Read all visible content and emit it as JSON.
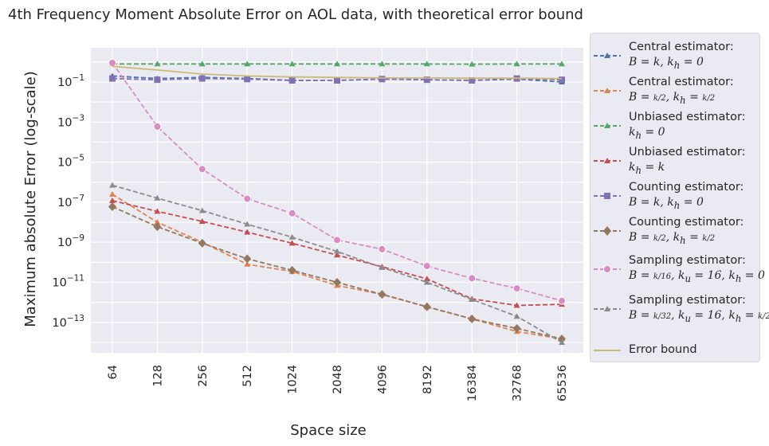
{
  "chart_data": {
    "type": "line",
    "title": "4th Frequency Moment Absolute Error on AOL data, with theoretical error bound",
    "xlabel": "Space size",
    "ylabel": "Maximum absolute Error (log-scale)",
    "y_scale": "log",
    "ylim": [
      3e-15,
      3
    ],
    "grid": true,
    "legend_position": "right-outside",
    "x": [
      "64",
      "128",
      "256",
      "512",
      "1024",
      "2048",
      "4096",
      "8192",
      "16384",
      "32768",
      "65536"
    ],
    "y_tick_labels": [
      "10^-13",
      "10^-11",
      "10^-9",
      "10^-7",
      "10^-5",
      "10^-3",
      "10^-1"
    ],
    "series": [
      {
        "name": "Central estimator:",
        "math": "B = k, k_h = 0",
        "color": "#4c72b0",
        "marker": "triangle",
        "dashed": true,
        "values": [
          0.2,
          0.15,
          0.17,
          0.15,
          0.12,
          0.12,
          0.14,
          0.13,
          0.12,
          0.14,
          0.1
        ]
      },
      {
        "name": "Central estimator:",
        "math": "B = k/2, k_h = k/2",
        "color": "#dd8452",
        "marker": "triangle",
        "dashed": true,
        "values": [
          2.5e-07,
          1e-08,
          1e-09,
          8e-11,
          3.5e-11,
          7e-12,
          2.5e-12,
          6e-13,
          1.5e-13,
          3.5e-14,
          1.5e-14
        ]
      },
      {
        "name": "Unbiased estimator:",
        "math": "k_h = 0",
        "color": "#55a868",
        "marker": "triangle",
        "dashed": true,
        "values": [
          0.8,
          0.8,
          0.8,
          0.8,
          0.8,
          0.8,
          0.8,
          0.8,
          0.78,
          0.8,
          0.8
        ]
      },
      {
        "name": "Unbiased estimator:",
        "math": "k_h = k",
        "color": "#c44e52",
        "marker": "triangle",
        "dashed": true,
        "values": [
          1.2e-07,
          3.5e-08,
          1.1e-08,
          3.2e-09,
          9e-10,
          2.3e-10,
          6e-11,
          1.5e-11,
          1.5e-12,
          7e-13,
          8e-13
        ]
      },
      {
        "name": "Counting estimator:",
        "math": "B = k, k_h = 0",
        "color": "#8172b3",
        "marker": "square",
        "dashed": true,
        "values": [
          0.15,
          0.13,
          0.15,
          0.14,
          0.12,
          0.12,
          0.14,
          0.13,
          0.12,
          0.15,
          0.13
        ]
      },
      {
        "name": "Counting estimator:",
        "math": "B = k/2, k_h = k/2",
        "color": "#937860",
        "marker": "diamond",
        "dashed": true,
        "values": [
          6e-08,
          6e-09,
          9e-10,
          1.5e-10,
          4e-11,
          1e-11,
          2.5e-12,
          6e-13,
          1.5e-13,
          5e-14,
          1.5e-14
        ]
      },
      {
        "name": "Sampling estimator:",
        "math": "B = k/16, k_u = 16, k_h = 0",
        "color": "#da8bc3",
        "marker": "circle",
        "dashed": true,
        "values": [
          0.9,
          0.0006,
          4.5e-06,
          1.5e-07,
          2.8e-08,
          1.3e-09,
          4.5e-10,
          6.5e-11,
          1.6e-11,
          5e-12,
          1.2e-12
        ]
      },
      {
        "name": "Sampling estimator:",
        "math": "B = k/32, k_u = 16, k_h = k/2",
        "color": "#8c8c8c",
        "marker": "triangle",
        "dashed": true,
        "values": [
          7e-07,
          1.6e-07,
          3.8e-08,
          8e-09,
          1.8e-09,
          3.5e-10,
          5.5e-11,
          1e-11,
          1.4e-12,
          2e-13,
          1e-14
        ]
      },
      {
        "name": "Error bound",
        "math": "",
        "color": "#ccb974",
        "marker": "none",
        "dashed": false,
        "values": [
          0.6,
          0.4,
          0.25,
          0.2,
          0.18,
          0.17,
          0.16,
          0.16,
          0.155,
          0.155,
          0.15
        ]
      }
    ]
  },
  "legend": {
    "entries": [
      {
        "label": "Central estimator:"
      },
      {
        "label": "Central estimator:"
      },
      {
        "label": "Unbiased estimator:"
      },
      {
        "label": "Unbiased estimator:"
      },
      {
        "label": "Counting estimator:"
      },
      {
        "label": "Counting estimator:"
      },
      {
        "label": "Sampling estimator:"
      },
      {
        "label": "Sampling estimator:"
      },
      {
        "label": "Error bound"
      }
    ]
  }
}
